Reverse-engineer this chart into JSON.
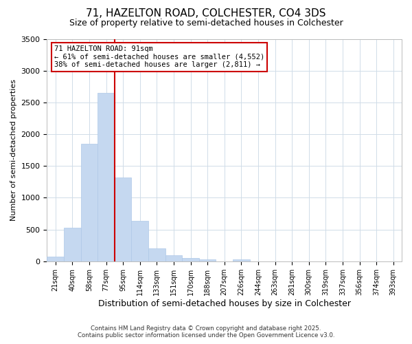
{
  "title_line1": "71, HAZELTON ROAD, COLCHESTER, CO4 3DS",
  "title_line2": "Size of property relative to semi-detached houses in Colchester",
  "xlabel": "Distribution of semi-detached houses by size in Colchester",
  "ylabel": "Number of semi-detached properties",
  "categories": [
    "21sqm",
    "40sqm",
    "58sqm",
    "77sqm",
    "95sqm",
    "114sqm",
    "133sqm",
    "151sqm",
    "170sqm",
    "188sqm",
    "207sqm",
    "226sqm",
    "244sqm",
    "263sqm",
    "281sqm",
    "300sqm",
    "319sqm",
    "337sqm",
    "356sqm",
    "374sqm",
    "393sqm"
  ],
  "values": [
    70,
    530,
    1850,
    2650,
    1320,
    640,
    200,
    100,
    50,
    30,
    0,
    30,
    0,
    0,
    0,
    0,
    0,
    0,
    0,
    0,
    0
  ],
  "bar_color": "#c5d8f0",
  "bar_edge_color": "#aec8e8",
  "vline_x": 3.5,
  "vline_color": "#cc0000",
  "annotation_title": "71 HAZELTON ROAD: 91sqm",
  "annotation_line2": "← 61% of semi-detached houses are smaller (4,552)",
  "annotation_line3": "38% of semi-detached houses are larger (2,811) →",
  "annotation_box_edgecolor": "#cc0000",
  "ylim": [
    0,
    3500
  ],
  "yticks": [
    0,
    500,
    1000,
    1500,
    2000,
    2500,
    3000,
    3500
  ],
  "footer_line1": "Contains HM Land Registry data © Crown copyright and database right 2025.",
  "footer_line2": "Contains public sector information licensed under the Open Government Licence v3.0.",
  "bg_color": "#ffffff",
  "plot_bg_color": "#ffffff",
  "grid_color": "#d0dce8",
  "title_fontsize": 11,
  "subtitle_fontsize": 9,
  "ylabel_fontsize": 8,
  "xlabel_fontsize": 9
}
